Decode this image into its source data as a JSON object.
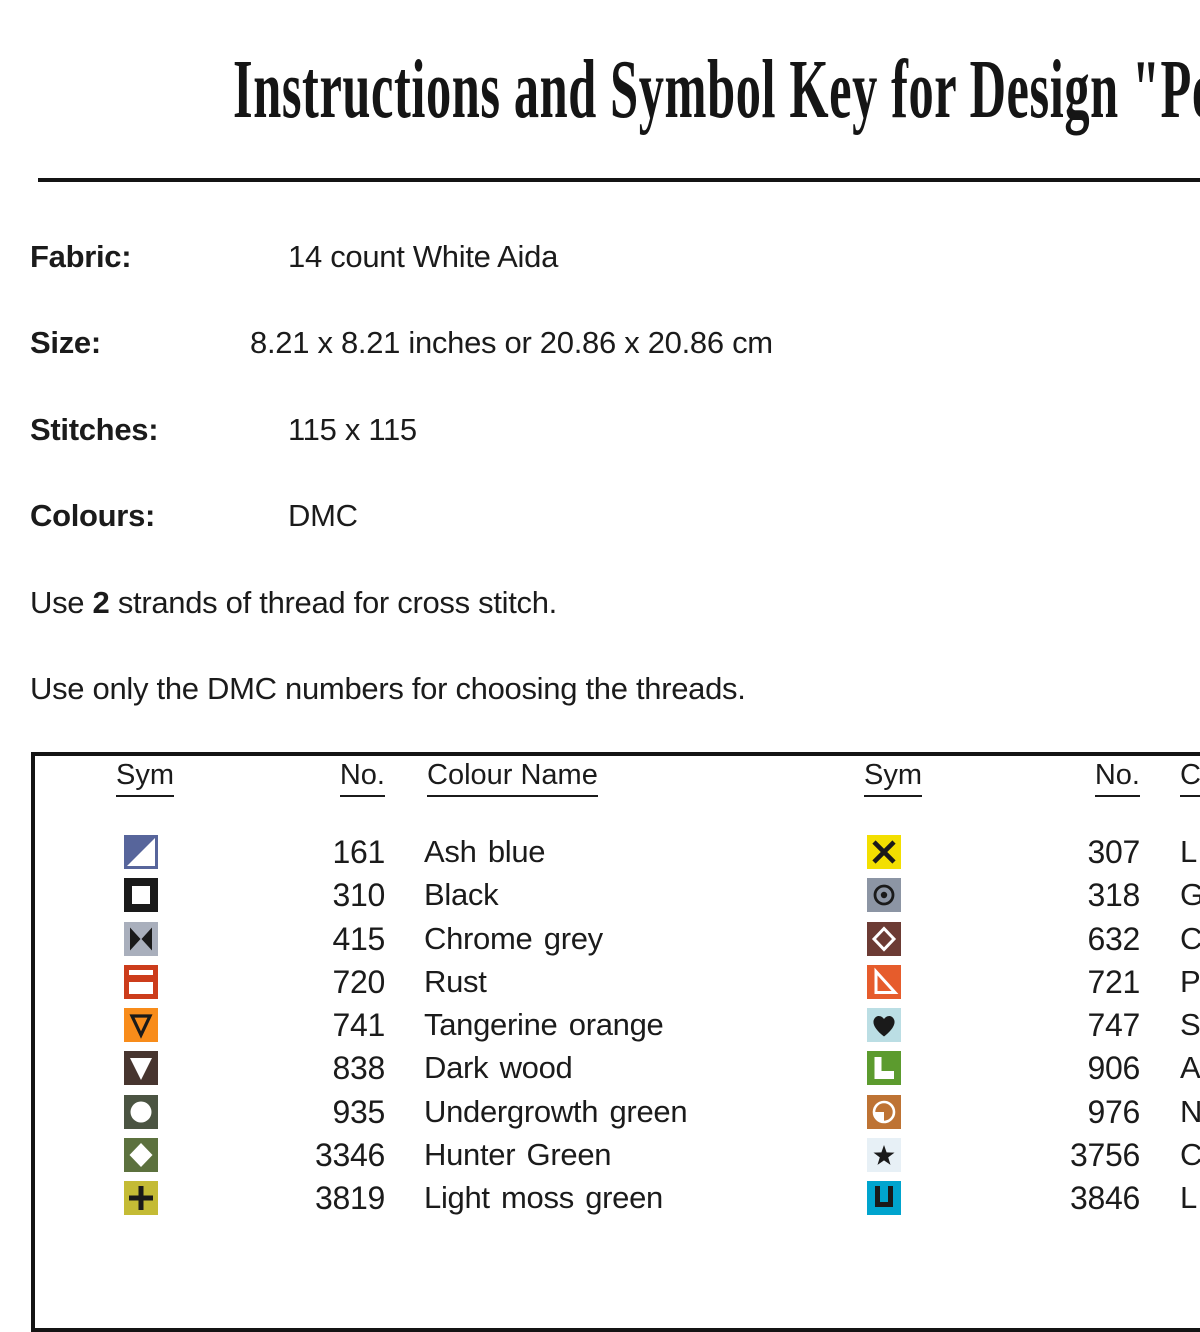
{
  "title": "Instructions and Symbol Key for Design \"Peles",
  "info": {
    "rows": [
      {
        "label": "Fabric:",
        "value": "14 count White Aida"
      },
      {
        "label": "Size:",
        "value": "8.21 x 8.21 inches or 20.86 x 20.86 cm"
      },
      {
        "label": "Stitches:",
        "value": "115 x 115"
      },
      {
        "label": "Colours:",
        "value": "DMC"
      }
    ],
    "note1_prefix": "Use ",
    "note1_bold": "2",
    "note1_suffix": " strands of thread for cross stitch.",
    "note2": "Use only the DMC numbers for choosing the threads."
  },
  "key_table": {
    "headers": {
      "sym": "Sym",
      "no": "No.",
      "colour": "Colour Name",
      "colour_right_visible": "C"
    },
    "left_rows": [
      {
        "no": "161",
        "name": "Ash blue",
        "symbol": {
          "icon": "corner-triangle-icon",
          "bg": "#57659B",
          "fg": "#FFFFFF"
        }
      },
      {
        "no": "310",
        "name": "Black",
        "symbol": {
          "icon": "open-square-icon",
          "bg": "#1A1A1A",
          "fg": "#FFFFFF"
        }
      },
      {
        "no": "415",
        "name": "Chrome grey",
        "symbol": {
          "icon": "bowtie-icon",
          "bg": "#A9AFBC",
          "fg": "#1A1A1A"
        }
      },
      {
        "no": "720",
        "name": "Rust",
        "symbol": {
          "icon": "window-icon",
          "bg": "#CC3C1B",
          "fg": "#FFFFFF"
        }
      },
      {
        "no": "741",
        "name": "Tangerine orange",
        "symbol": {
          "icon": "open-triangle-down-icon",
          "bg": "#F88C1A",
          "fg": "#1A1A1A"
        }
      },
      {
        "no": "838",
        "name": "Dark wood",
        "symbol": {
          "icon": "triangle-down-icon",
          "bg": "#47352F",
          "fg": "#FFFFFF"
        }
      },
      {
        "no": "935",
        "name": "Undergrowth green",
        "symbol": {
          "icon": "circle-icon",
          "bg": "#4B5442",
          "fg": "#FFFFFF"
        }
      },
      {
        "no": "3346",
        "name": "Hunter Green",
        "symbol": {
          "icon": "diamond-icon",
          "bg": "#5C713E",
          "fg": "#FFFFFF"
        }
      },
      {
        "no": "3819",
        "name": "Light moss green",
        "symbol": {
          "icon": "plus-icon",
          "bg": "#C4BB35",
          "fg": "#1A1A1A"
        }
      }
    ],
    "right_rows": [
      {
        "no": "307",
        "name": "L",
        "symbol": {
          "icon": "x-icon",
          "bg": "#F3DF00",
          "fg": "#1A1A1A"
        }
      },
      {
        "no": "318",
        "name": "G",
        "symbol": {
          "icon": "circle-dot-icon",
          "bg": "#8C95A4",
          "fg": "#1A1A1A"
        }
      },
      {
        "no": "632",
        "name": "C",
        "symbol": {
          "icon": "open-diamond-icon",
          "bg": "#6C3B34",
          "fg": "#FFFFFF"
        }
      },
      {
        "no": "721",
        "name": "P",
        "symbol": {
          "icon": "open-right-triangle-icon",
          "bg": "#E65C2C",
          "fg": "#FFFFFF"
        }
      },
      {
        "no": "747",
        "name": "S",
        "symbol": {
          "icon": "heart-icon",
          "bg": "#BBDEE4",
          "fg": "#1A1A1A"
        }
      },
      {
        "no": "906",
        "name": "A",
        "symbol": {
          "icon": "l-shape-icon",
          "bg": "#5C9B2E",
          "fg": "#FFFFFF"
        }
      },
      {
        "no": "976",
        "name": "N",
        "symbol": {
          "icon": "quarter-circle-icon",
          "bg": "#BE7334",
          "fg": "#FFFFFF"
        }
      },
      {
        "no": "3756",
        "name": "C",
        "symbol": {
          "icon": "star-icon",
          "bg": "#E7F0F6",
          "fg": "#1A1A1A"
        }
      },
      {
        "no": "3846",
        "name": "L",
        "symbol": {
          "icon": "u-shape-icon",
          "bg": "#00A4CE",
          "fg": "#1A1A1A"
        }
      }
    ]
  }
}
